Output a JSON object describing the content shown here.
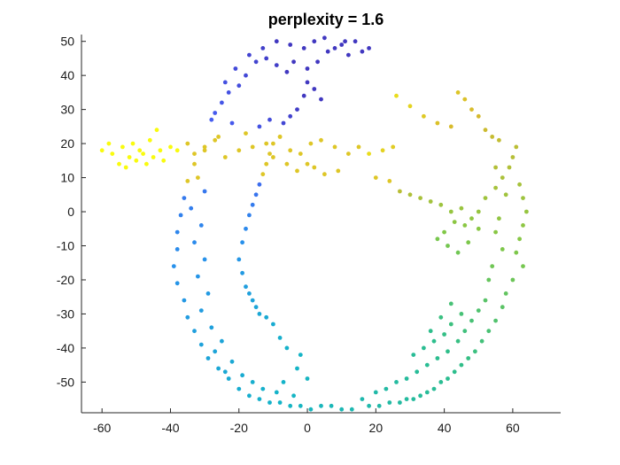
{
  "chart_data": {
    "type": "scatter",
    "title": "perplexity = 1.6",
    "xlabel": "",
    "ylabel": "",
    "xlim": [
      -66,
      74
    ],
    "ylim": [
      -59,
      52
    ],
    "x_ticks": [
      -60,
      -40,
      -20,
      0,
      20,
      40,
      60
    ],
    "y_ticks": [
      -50,
      -40,
      -30,
      -20,
      -10,
      0,
      10,
      20,
      30,
      40,
      50
    ],
    "grid": false,
    "legend": "none",
    "colormap": "parula",
    "series": [
      {
        "points": [
          [
            18,
            48
          ],
          [
            14,
            50
          ],
          [
            10,
            49
          ],
          [
            6,
            47
          ],
          [
            3,
            44
          ],
          [
            0,
            42
          ],
          [
            -4,
            44
          ],
          [
            -6,
            41
          ],
          [
            -9,
            43
          ],
          [
            -12,
            45
          ],
          [
            -15,
            44
          ],
          [
            -18,
            40
          ],
          [
            -20,
            37
          ],
          [
            -23,
            35
          ],
          [
            -25,
            32
          ],
          [
            -27,
            29
          ],
          [
            -28,
            27
          ],
          [
            -24,
            38
          ],
          [
            -21,
            42
          ],
          [
            -17,
            46
          ],
          [
            -13,
            48
          ],
          [
            -9,
            50
          ],
          [
            -5,
            49
          ],
          [
            -1,
            48
          ],
          [
            2,
            50
          ],
          [
            5,
            51
          ],
          [
            8,
            48
          ],
          [
            12,
            46
          ],
          [
            16,
            47
          ],
          [
            11,
            50
          ],
          [
            0,
            38
          ],
          [
            2,
            36
          ],
          [
            4,
            33
          ],
          [
            -1,
            34
          ],
          [
            -3,
            30
          ],
          [
            -5,
            28
          ],
          [
            -7,
            26
          ],
          [
            -8,
            22
          ],
          [
            -10,
            20
          ],
          [
            -11,
            17
          ],
          [
            -12,
            14
          ],
          [
            -13,
            11
          ],
          [
            -14,
            8
          ],
          [
            -15,
            5
          ],
          [
            -16,
            2
          ],
          [
            -17,
            -1
          ],
          [
            -18,
            -5
          ],
          [
            -19,
            -9
          ],
          [
            -20,
            -14
          ],
          [
            -19,
            -18
          ],
          [
            -18,
            -22
          ],
          [
            -16,
            -26
          ],
          [
            -14,
            -30
          ],
          [
            -17,
            -24
          ],
          [
            -15,
            -28
          ],
          [
            -12,
            -31
          ],
          [
            -10,
            -33
          ],
          [
            -22,
            26
          ],
          [
            -26,
            22
          ],
          [
            -30,
            18
          ],
          [
            -33,
            14
          ],
          [
            -35,
            9
          ],
          [
            -36,
            4
          ],
          [
            -37,
            -1
          ],
          [
            -38,
            -6
          ],
          [
            -38,
            -11
          ],
          [
            -39,
            -16
          ],
          [
            -38,
            -21
          ],
          [
            -36,
            -26
          ],
          [
            -35,
            -31
          ],
          [
            -33,
            -35
          ],
          [
            -31,
            -39
          ],
          [
            -29,
            -43
          ],
          [
            -26,
            -46
          ],
          [
            -23,
            -49
          ],
          [
            -20,
            -52
          ],
          [
            -17,
            -54
          ],
          [
            -14,
            -55
          ],
          [
            -11,
            -56
          ],
          [
            -8,
            -56
          ],
          [
            -5,
            -57
          ],
          [
            -2,
            -57
          ],
          [
            1,
            -58
          ],
          [
            4,
            -57
          ],
          [
            7,
            -57
          ],
          [
            10,
            -58
          ],
          [
            13,
            -58
          ],
          [
            -32,
            10
          ],
          [
            -30,
            6
          ],
          [
            -34,
            1
          ],
          [
            -31,
            -4
          ],
          [
            -33,
            -9
          ],
          [
            -30,
            -14
          ],
          [
            -32,
            -19
          ],
          [
            -29,
            -24
          ],
          [
            -31,
            -29
          ],
          [
            -28,
            -34
          ],
          [
            -25,
            -38
          ],
          [
            -27,
            -41
          ],
          [
            -22,
            -44
          ],
          [
            -24,
            -47
          ],
          [
            -19,
            -48
          ],
          [
            -16,
            -50
          ],
          [
            -13,
            -52
          ],
          [
            -9,
            -53
          ],
          [
            -7,
            -50
          ],
          [
            -4,
            -54
          ],
          [
            -3,
            -46
          ],
          [
            0,
            -49
          ],
          [
            -6,
            -40
          ],
          [
            -8,
            -37
          ],
          [
            -2,
            -42
          ],
          [
            -60,
            18
          ],
          [
            -57,
            17
          ],
          [
            -54,
            19
          ],
          [
            -52,
            16
          ],
          [
            -50,
            15
          ],
          [
            -48,
            17
          ],
          [
            -45,
            16
          ],
          [
            -43,
            18
          ],
          [
            -40,
            19
          ],
          [
            -55,
            14
          ],
          [
            -51,
            20
          ],
          [
            -47,
            14
          ],
          [
            -42,
            15
          ],
          [
            -58,
            20
          ],
          [
            -53,
            13
          ],
          [
            -49,
            18
          ],
          [
            -46,
            21
          ],
          [
            -44,
            24
          ],
          [
            -38,
            18
          ],
          [
            -35,
            20
          ],
          [
            -33,
            17
          ],
          [
            -30,
            19
          ],
          [
            -27,
            21
          ],
          [
            -24,
            16
          ],
          [
            -20,
            18
          ],
          [
            -16,
            19
          ],
          [
            -12,
            20
          ],
          [
            -8,
            22
          ],
          [
            -5,
            18
          ],
          [
            -2,
            17
          ],
          [
            1,
            20
          ],
          [
            4,
            21
          ],
          [
            8,
            19
          ],
          [
            12,
            17
          ],
          [
            15,
            19
          ],
          [
            18,
            17
          ],
          [
            22,
            18
          ],
          [
            25,
            19
          ],
          [
            0,
            14
          ],
          [
            -3,
            12
          ],
          [
            2,
            13
          ],
          [
            5,
            11
          ],
          [
            9,
            12
          ],
          [
            -6,
            14
          ],
          [
            -10,
            16
          ],
          [
            -18,
            23
          ],
          [
            -14,
            25
          ],
          [
            -11,
            27
          ],
          [
            20,
            10
          ],
          [
            24,
            9
          ],
          [
            27,
            6
          ],
          [
            30,
            5
          ],
          [
            33,
            4
          ],
          [
            36,
            3
          ],
          [
            39,
            2
          ],
          [
            42,
            0
          ],
          [
            45,
            1
          ],
          [
            48,
            -2
          ],
          [
            50,
            -5
          ],
          [
            46,
            -4
          ],
          [
            43,
            -3
          ],
          [
            40,
            -6
          ],
          [
            38,
            -8
          ],
          [
            41,
            -10
          ],
          [
            44,
            -12
          ],
          [
            47,
            -9
          ],
          [
            50,
            0
          ],
          [
            52,
            4
          ],
          [
            55,
            7
          ],
          [
            57,
            10
          ],
          [
            59,
            13
          ],
          [
            60,
            16
          ],
          [
            61,
            19
          ],
          [
            62,
            8
          ],
          [
            63,
            4
          ],
          [
            64,
            0
          ],
          [
            63,
            -4
          ],
          [
            62,
            -8
          ],
          [
            61,
            -12
          ],
          [
            63,
            -16
          ],
          [
            60,
            -20
          ],
          [
            58,
            -24
          ],
          [
            26,
            34
          ],
          [
            30,
            31
          ],
          [
            34,
            28
          ],
          [
            38,
            26
          ],
          [
            42,
            25
          ],
          [
            44,
            35
          ],
          [
            46,
            33
          ],
          [
            48,
            30
          ],
          [
            50,
            28
          ],
          [
            52,
            24
          ],
          [
            54,
            22
          ],
          [
            56,
            21
          ],
          [
            55,
            13
          ],
          [
            58,
            5
          ],
          [
            56,
            -2
          ],
          [
            55,
            -6
          ],
          [
            57,
            -11
          ],
          [
            54,
            -16
          ],
          [
            53,
            -20
          ],
          [
            57,
            -28
          ],
          [
            55,
            -32
          ],
          [
            53,
            -35
          ],
          [
            51,
            -38
          ],
          [
            49,
            -41
          ],
          [
            47,
            -43
          ],
          [
            45,
            -45
          ],
          [
            43,
            -47
          ],
          [
            41,
            -49
          ],
          [
            39,
            -50
          ],
          [
            37,
            -52
          ],
          [
            35,
            -53
          ],
          [
            33,
            -54
          ],
          [
            31,
            -55
          ],
          [
            29,
            -55
          ],
          [
            27,
            -56
          ],
          [
            24,
            -56
          ],
          [
            21,
            -57
          ],
          [
            18,
            -57
          ],
          [
            16,
            -55
          ],
          [
            20,
            -53
          ],
          [
            23,
            -52
          ],
          [
            26,
            -50
          ],
          [
            29,
            -49
          ],
          [
            32,
            -47
          ],
          [
            35,
            -45
          ],
          [
            38,
            -43
          ],
          [
            41,
            -41
          ],
          [
            44,
            -38
          ],
          [
            46,
            -35
          ],
          [
            48,
            -32
          ],
          [
            50,
            -29
          ],
          [
            52,
            -26
          ],
          [
            45,
            -30
          ],
          [
            42,
            -33
          ],
          [
            40,
            -36
          ],
          [
            37,
            -38
          ],
          [
            34,
            -40
          ],
          [
            31,
            -42
          ],
          [
            36,
            -35
          ],
          [
            39,
            -31
          ],
          [
            42,
            -27
          ]
        ]
      }
    ]
  }
}
